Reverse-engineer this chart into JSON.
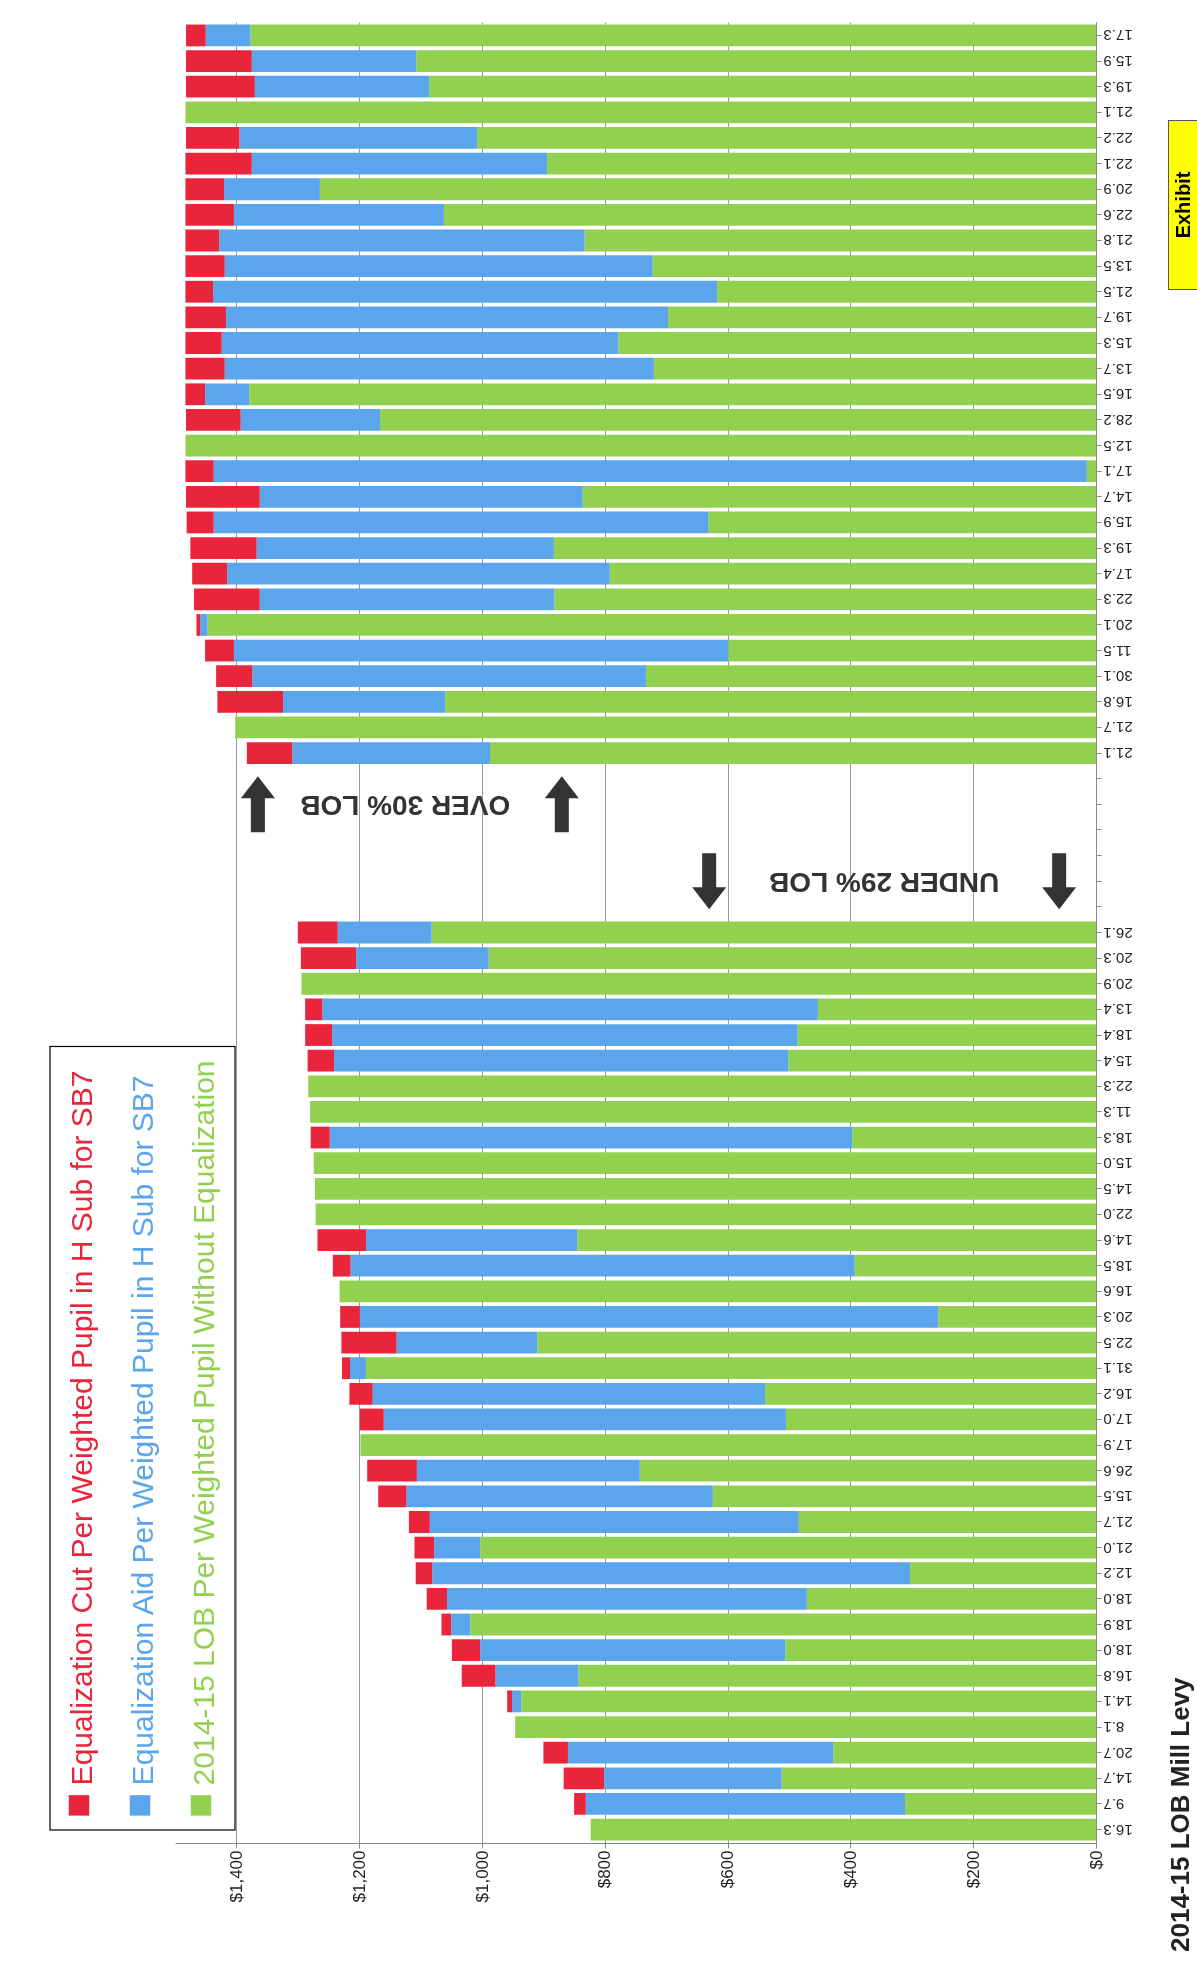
{
  "chart_data": {
    "type": "bar",
    "orientation": "horizontal",
    "title": "2014-15 LOB Mill Levy",
    "stacked": true,
    "grid": "x",
    "legend": "left",
    "categories": [
      "17.3",
      "15.9",
      "19.3",
      "21.1",
      "22.2",
      "22.1",
      "20.9",
      "22.6",
      "21.8",
      "13.5",
      "21.5",
      "19.7",
      "15.3",
      "13.7",
      "16.5",
      "28.2",
      "12.5",
      "17.1",
      "14.7",
      "15.9",
      "19.3",
      "17.4",
      "22.3",
      "20.1",
      "11.5",
      "30.1",
      "16.8",
      "21.7",
      "21.1",
      null,
      null,
      null,
      null,
      null,
      null,
      "26.1",
      "20.3",
      "20.9",
      "13.4",
      "18.4",
      "15.4",
      "22.3",
      "11.3",
      "18.3",
      "15.0",
      "14.5",
      "22.0",
      "14.6",
      "18.5",
      "16.6",
      "20.3",
      "22.5",
      "31.1",
      "16.2",
      "17.0",
      "17.9",
      "26.6",
      "15.5",
      "21.7",
      "21.0",
      "12.2",
      "18.0",
      "18.9",
      "18.0",
      "16.8",
      "14.1",
      "8.1",
      "20.7",
      "14.7",
      "9.7",
      "16.3"
    ],
    "series": [
      {
        "name": "2014-15 LOB Per Weighted Pupil Without Equalization",
        "color": "#92d050",
        "values": [
          1377,
          1107,
          1086,
          1483,
          1008,
          894,
          1264,
          1062,
          833,
          722,
          617,
          697,
          778,
          720,
          1379,
          1166,
          1483,
          15,
          836,
          631,
          883,
          792,
          882,
          1447,
          599,
          733,
          1060,
          1402,
          987,
          null,
          null,
          null,
          null,
          null,
          null,
          1082,
          989,
          1294,
          453,
          486,
          501,
          1283,
          1280,
          397,
          1274,
          1272,
          1271,
          845,
          393,
          1232,
          257,
          910,
          1189,
          539,
          505,
          1198,
          743,
          624,
          484,
          1003,
          303,
          471,
          1019,
          506,
          843,
          936,
          946,
          428,
          512,
          311,
          823
        ]
      },
      {
        "name": "Equalization Aid Per Weighted Pupil in H Sub for SB7",
        "color": "#5aa5ec",
        "values": [
          73,
          268,
          284,
          null,
          387,
          481,
          156,
          342,
          595,
          697,
          821,
          720,
          646,
          699,
          72,
          227,
          null,
          1422,
          526,
          806,
          484,
          623,
          480,
          12,
          805,
          641,
          264,
          null,
          322,
          null,
          null,
          null,
          null,
          null,
          null,
          153,
          216,
          null,
          807,
          758,
          740,
          null,
          null,
          851,
          null,
          null,
          null,
          344,
          821,
          null,
          942,
          229,
          26,
          639,
          655,
          null,
          363,
          499,
          601,
          75,
          778,
          586,
          31,
          497,
          135,
          15,
          null,
          432,
          289,
          520,
          null
        ]
      },
      {
        "name": "Equalization Cut Per Weighted Pupil in H Sub for SB7",
        "color": "#e8253a",
        "values": [
          32,
          107,
          112,
          null,
          87,
          108,
          63,
          79,
          55,
          64,
          45,
          66,
          59,
          64,
          32,
          89,
          null,
          46,
          120,
          44,
          108,
          57,
          107,
          6,
          47,
          59,
          107,
          null,
          74,
          null,
          null,
          null,
          null,
          null,
          null,
          65,
          90,
          null,
          28,
          44,
          43,
          null,
          null,
          31,
          null,
          null,
          null,
          79,
          29,
          null,
          32,
          90,
          13,
          38,
          39,
          null,
          81,
          46,
          34,
          32,
          27,
          33,
          16,
          46,
          55,
          8,
          null,
          40,
          66,
          19,
          null
        ]
      }
    ],
    "xlim": [
      1500,
      0
    ],
    "xticks": [
      {
        "value": 0,
        "label": "$0"
      },
      {
        "value": 200,
        "label": "$200"
      },
      {
        "value": 400,
        "label": "$400"
      },
      {
        "value": 600,
        "label": "$600"
      },
      {
        "value": 800,
        "label": "$800"
      },
      {
        "value": 1000,
        "label": "$1,000"
      },
      {
        "value": 1200,
        "label": "$1,200"
      },
      {
        "value": 1400,
        "label": "$1,400"
      }
    ],
    "annotations": [
      "UNDER 29% LOB",
      "OVER 30% LOB",
      "Exhibit"
    ]
  }
}
